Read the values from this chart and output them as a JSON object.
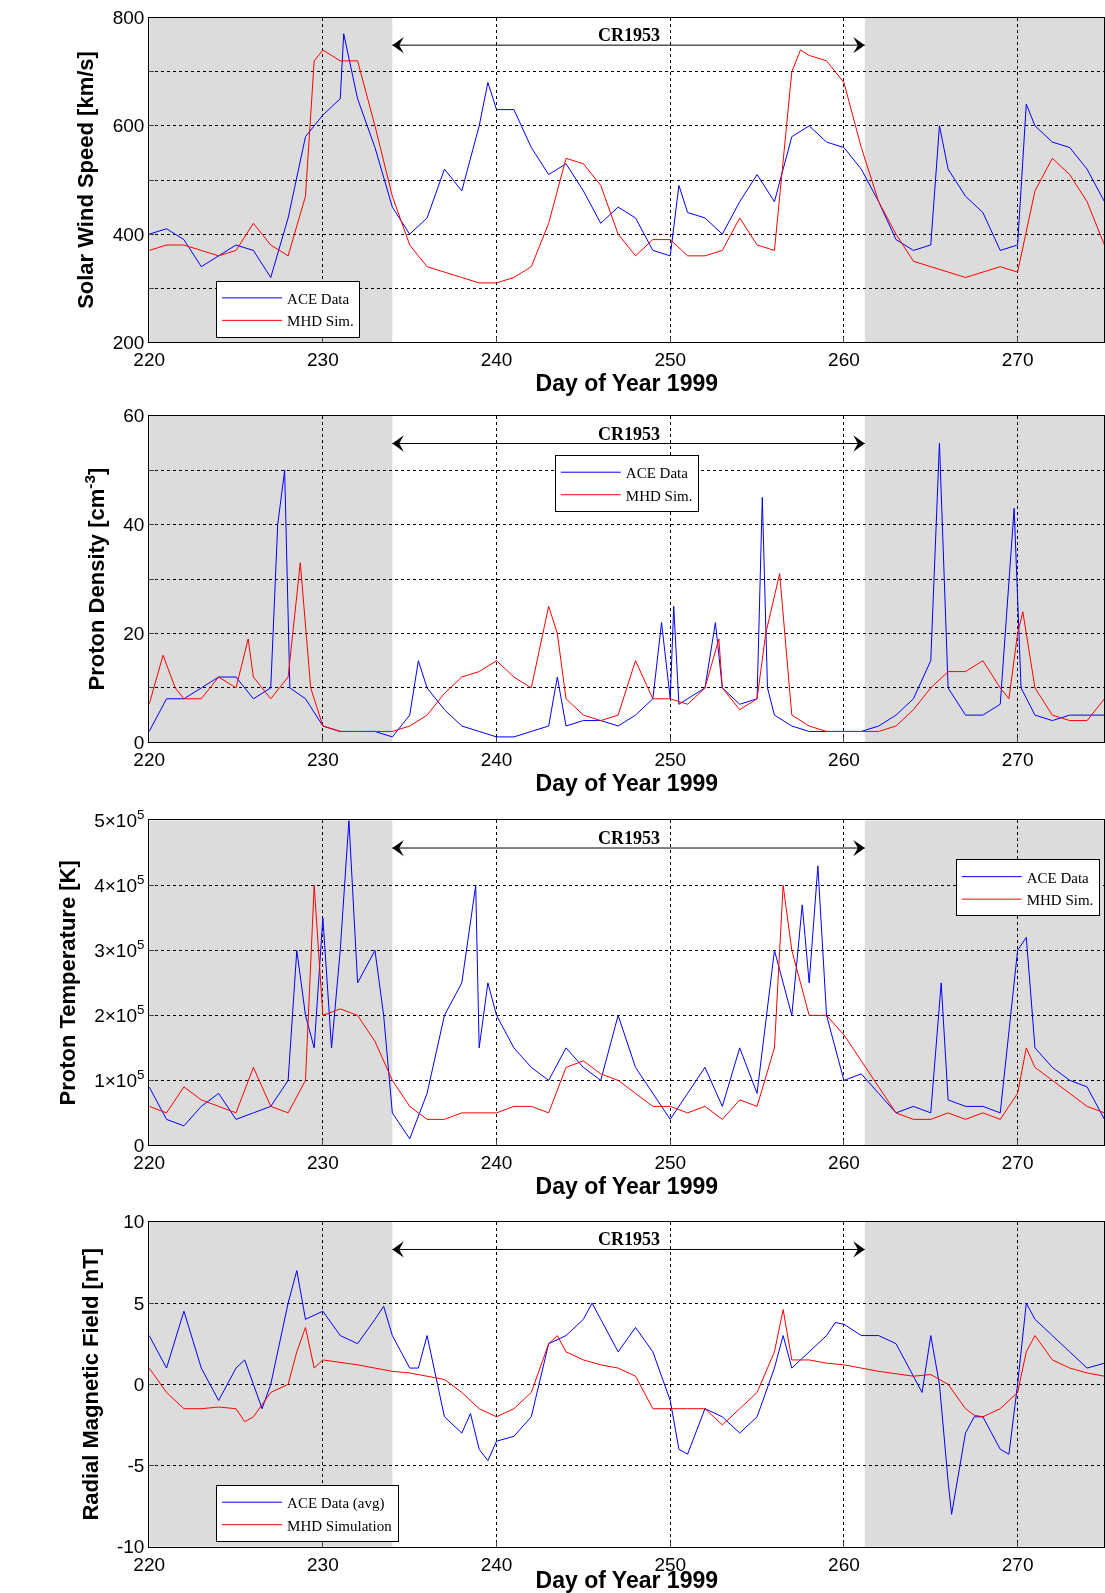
{
  "chart_data": [
    {
      "type": "line",
      "ylabel": "Solar Wind Speed [km/s]",
      "xlabel": "Day of Year 1999",
      "annotations": [
        "CR1953"
      ],
      "xlim": [
        220,
        275
      ],
      "xticks": [
        220,
        230,
        240,
        250,
        260,
        270
      ],
      "ylim": [
        200,
        800
      ],
      "yticks": [
        200,
        {
          "value": 300,
          "label": null
        },
        400,
        {
          "value": 500,
          "label": null
        },
        600,
        {
          "value": 700,
          "label": null
        },
        800
      ],
      "grid": true,
      "line_style": "solid",
      "legend": "bottom left",
      "bands": [
        {
          "axis": "x",
          "from": 220,
          "to": 234,
          "label": null,
          "color": "#dcdcdc"
        },
        {
          "axis": "x",
          "from": 261.2,
          "to": 275,
          "label": null,
          "color": "#dcdcdc"
        }
      ],
      "series": [
        {
          "name": "ACE Data",
          "color": "#0000ff",
          "x": [
            220,
            221,
            222,
            223,
            224,
            225,
            226,
            227,
            228,
            229,
            230,
            231,
            231.2,
            232,
            233,
            234,
            235,
            236,
            237,
            238,
            239,
            239.5,
            240,
            241,
            242,
            243,
            244,
            245,
            246,
            247,
            248,
            249,
            250,
            250.5,
            251,
            252,
            253,
            254,
            255,
            256,
            257,
            258,
            259,
            260,
            261,
            262,
            263,
            264,
            265,
            265.5,
            266,
            267,
            268,
            269,
            270,
            270.5,
            271,
            272,
            273,
            274,
            275
          ],
          "values": [
            400,
            410,
            390,
            340,
            360,
            380,
            370,
            320,
            430,
            580,
            620,
            650,
            770,
            650,
            560,
            450,
            400,
            430,
            520,
            480,
            600,
            680,
            630,
            630,
            560,
            510,
            530,
            480,
            420,
            450,
            430,
            370,
            360,
            490,
            440,
            430,
            400,
            460,
            510,
            460,
            580,
            600,
            570,
            560,
            520,
            460,
            390,
            370,
            380,
            600,
            520,
            470,
            440,
            370,
            380,
            640,
            600,
            570,
            560,
            520,
            460
          ]
        },
        {
          "name": "MHD Sim.",
          "color": "#ff0000",
          "x": [
            220,
            221,
            222,
            223,
            224,
            225,
            226,
            227,
            228,
            229,
            229.5,
            230,
            231,
            232,
            233,
            234,
            235,
            236,
            237,
            238,
            239,
            240,
            241,
            242,
            243,
            244,
            245,
            246,
            247,
            248,
            249,
            250,
            251,
            252,
            253,
            254,
            255,
            256,
            257,
            257.5,
            258,
            259,
            260,
            261,
            262,
            263,
            264,
            265,
            266,
            267,
            268,
            269,
            270,
            271,
            272,
            273,
            274,
            275
          ],
          "values": [
            370,
            380,
            380,
            370,
            360,
            370,
            420,
            380,
            360,
            470,
            720,
            740,
            720,
            720,
            600,
            470,
            380,
            340,
            330,
            320,
            310,
            310,
            320,
            340,
            420,
            540,
            530,
            490,
            400,
            360,
            390,
            390,
            360,
            360,
            370,
            430,
            380,
            370,
            700,
            740,
            730,
            720,
            680,
            560,
            460,
            400,
            350,
            340,
            330,
            320,
            330,
            340,
            330,
            480,
            540,
            510,
            460,
            380
          ]
        }
      ]
    },
    {
      "type": "line",
      "ylabel": "Proton Density [cm$^{-3}$]",
      "xlabel": "Day of Year 1999",
      "annotations": [
        "CR1953"
      ],
      "xlim": [
        220,
        275
      ],
      "xticks": [
        220,
        230,
        240,
        250,
        260,
        270
      ],
      "ylim": [
        0,
        60
      ],
      "yticks": [
        0,
        {
          "value": 10,
          "label": null
        },
        20,
        {
          "value": 30,
          "label": null
        },
        40,
        {
          "value": 50,
          "label": null
        },
        60
      ],
      "grid": true,
      "line_style": "solid",
      "legend": "top",
      "bands": [
        {
          "axis": "x",
          "from": 220,
          "to": 234,
          "label": null,
          "color": "#dcdcdc"
        },
        {
          "axis": "x",
          "from": 261.2,
          "to": 275,
          "label": null,
          "color": "#dcdcdc"
        }
      ],
      "series": [
        {
          "name": "ACE Data",
          "color": "#0000ff",
          "x": [
            220,
            221,
            222,
            223,
            224,
            225,
            226,
            227,
            227.4,
            227.8,
            228.1,
            229,
            230,
            231,
            232,
            233,
            234,
            235,
            235.5,
            236,
            237,
            238,
            239,
            240,
            241,
            242,
            243,
            243.5,
            244,
            245,
            246,
            247,
            248,
            249,
            249.5,
            250,
            250.2,
            250.5,
            251,
            252,
            252.6,
            253,
            254,
            255,
            255.3,
            255.6,
            256,
            257,
            258,
            259,
            260,
            261,
            262,
            263,
            264,
            265,
            265.5,
            266,
            267,
            268,
            269,
            269.8,
            270.2,
            271,
            272,
            273,
            274,
            275
          ],
          "values": [
            2,
            8,
            8,
            10,
            12,
            12,
            8,
            10,
            40,
            50,
            10,
            8,
            3,
            2,
            2,
            2,
            1,
            5,
            15,
            10,
            6,
            3,
            2,
            1,
            1,
            2,
            3,
            12,
            3,
            4,
            4,
            3,
            5,
            8,
            22,
            8,
            25,
            7,
            8,
            10,
            22,
            10,
            7,
            8,
            45,
            10,
            5,
            3,
            2,
            2,
            2,
            2,
            3,
            5,
            8,
            15,
            55,
            10,
            5,
            5,
            7,
            43,
            10,
            5,
            4,
            5,
            5,
            5
          ]
        },
        {
          "name": "MHD Sim.",
          "color": "#ff0000",
          "x": [
            220,
            220.8,
            221.5,
            222,
            223,
            224,
            225,
            225.7,
            226,
            227,
            227.5,
            228,
            228.7,
            229.3,
            230,
            231,
            232,
            233,
            234,
            235,
            236,
            237,
            238,
            239,
            240,
            241,
            242,
            243,
            243.5,
            244,
            245,
            246,
            247,
            248,
            249,
            250,
            251,
            252,
            252.8,
            253,
            254,
            255,
            255.5,
            256.3,
            257,
            258,
            259,
            260,
            261,
            262,
            263,
            264,
            265,
            266,
            267,
            268,
            269,
            269.5,
            270,
            270.3,
            271,
            272,
            273,
            274,
            275
          ],
          "values": [
            7,
            16,
            10,
            8,
            8,
            12,
            10,
            19,
            12,
            8,
            10,
            12,
            33,
            10,
            3,
            2,
            2,
            2,
            2,
            3,
            5,
            9,
            12,
            13,
            15,
            12,
            10,
            25,
            20,
            8,
            5,
            4,
            5,
            15,
            8,
            8,
            7,
            10,
            19,
            10,
            6,
            8,
            20,
            31,
            5,
            3,
            2,
            2,
            2,
            2,
            3,
            6,
            10,
            13,
            13,
            15,
            10,
            8,
            20,
            24,
            10,
            5,
            4,
            4,
            8
          ]
        }
      ]
    },
    {
      "type": "line",
      "ylabel": "Proton Temperature [K]",
      "xlabel": "Day of Year 1999",
      "annotations": [
        "CR1953"
      ],
      "xlim": [
        220,
        275
      ],
      "xticks": [
        220,
        230,
        240,
        250,
        260,
        270
      ],
      "ylim": [
        0,
        500000
      ],
      "yticks": [
        0,
        {
          "value": 100000,
          "label": "1×10$^{5}$"
        },
        {
          "value": 200000,
          "label": "2×10$^{5}$"
        },
        {
          "value": 300000,
          "label": "3×10$^{5}$"
        },
        {
          "value": 400000,
          "label": "4×10$^{5}$"
        },
        {
          "value": 500000,
          "label": "5×10$^{5}$"
        }
      ],
      "grid": true,
      "line_style": "solid",
      "legend": "top right",
      "bands": [
        {
          "axis": "x",
          "from": 220,
          "to": 234,
          "label": null,
          "color": "#dcdcdc"
        },
        {
          "axis": "x",
          "from": 261.2,
          "to": 275,
          "label": null,
          "color": "#dcdcdc"
        }
      ],
      "series": [
        {
          "name": "ACE Data",
          "color": "#0000ff",
          "x": [
            220,
            221,
            222,
            223,
            224,
            225,
            226,
            227,
            228,
            228.5,
            229,
            229.5,
            230,
            230.5,
            231,
            231.5,
            232,
            233,
            233.5,
            234,
            235,
            236,
            237,
            238,
            238.8,
            239,
            239.5,
            240,
            241,
            242,
            243,
            244,
            245,
            246,
            247,
            248,
            249,
            250,
            251,
            252,
            253,
            254,
            255,
            256,
            256.5,
            257,
            257.6,
            258,
            258.5,
            259,
            260,
            261,
            262,
            263,
            264,
            265,
            265.6,
            266,
            267,
            268,
            269,
            270,
            270.5,
            271,
            272,
            273,
            274,
            275
          ],
          "values": [
            90000,
            40000,
            30000,
            60000,
            80000,
            40000,
            50000,
            60000,
            100000,
            300000,
            200000,
            150000,
            350000,
            150000,
            300000,
            500000,
            250000,
            300000,
            200000,
            50000,
            10000,
            80000,
            200000,
            250000,
            400000,
            150000,
            250000,
            200000,
            150000,
            120000,
            100000,
            150000,
            120000,
            100000,
            200000,
            120000,
            80000,
            40000,
            80000,
            120000,
            60000,
            150000,
            80000,
            300000,
            250000,
            200000,
            370000,
            250000,
            430000,
            200000,
            100000,
            110000,
            80000,
            50000,
            60000,
            50000,
            250000,
            70000,
            60000,
            60000,
            50000,
            300000,
            320000,
            150000,
            120000,
            100000,
            90000,
            40000
          ]
        },
        {
          "name": "MHD Sim.",
          "color": "#ff0000",
          "x": [
            220,
            221,
            222,
            223,
            224,
            225,
            226,
            227,
            228,
            229,
            229.5,
            230,
            231,
            232,
            233,
            234,
            235,
            236,
            237,
            238,
            239,
            240,
            241,
            242,
            243,
            244,
            245,
            246,
            247,
            248,
            249,
            250,
            251,
            252,
            253,
            254,
            255,
            256,
            256.5,
            257,
            258,
            259,
            260,
            261,
            262,
            263,
            264,
            265,
            266,
            267,
            268,
            269,
            270,
            270.5,
            271,
            272,
            273,
            274,
            275
          ],
          "values": [
            60000,
            50000,
            90000,
            70000,
            60000,
            50000,
            120000,
            60000,
            50000,
            100000,
            400000,
            200000,
            210000,
            200000,
            160000,
            100000,
            60000,
            40000,
            40000,
            50000,
            50000,
            50000,
            60000,
            60000,
            50000,
            120000,
            130000,
            110000,
            100000,
            80000,
            60000,
            60000,
            50000,
            60000,
            40000,
            70000,
            60000,
            150000,
            400000,
            300000,
            200000,
            200000,
            170000,
            130000,
            90000,
            50000,
            40000,
            40000,
            50000,
            40000,
            50000,
            40000,
            80000,
            150000,
            120000,
            100000,
            80000,
            60000,
            50000
          ]
        }
      ]
    },
    {
      "type": "line",
      "ylabel": "Radial Magnetic Field [nT]",
      "xlabel": "Day of Year 1999",
      "annotations": [
        "CR1953"
      ],
      "xlim": [
        220,
        275
      ],
      "xticks": [
        220,
        230,
        240,
        250,
        260,
        270
      ],
      "ylim": [
        -10,
        10
      ],
      "yticks": [
        -10,
        -5,
        0,
        5,
        10
      ],
      "grid": true,
      "line_style": "solid",
      "legend": "bottom left",
      "bands": [
        {
          "axis": "x",
          "from": 220,
          "to": 234,
          "label": null,
          "color": "#dcdcdc"
        },
        {
          "axis": "x",
          "from": 261.2,
          "to": 275,
          "label": null,
          "color": "#dcdcdc"
        }
      ],
      "series": [
        {
          "name": "ACE Data (avg)",
          "color": "#0000ff",
          "x": [
            220,
            221,
            222,
            223,
            224,
            225,
            225.5,
            226,
            226.5,
            227,
            228,
            228.5,
            229,
            230,
            231,
            232,
            233,
            233.5,
            234,
            235,
            235.5,
            236,
            237,
            238,
            238.5,
            239,
            239.5,
            240,
            241,
            242,
            243,
            244,
            245,
            245.5,
            246,
            247,
            248,
            249,
            250,
            250.5,
            251,
            252,
            253,
            254,
            255,
            256,
            256.5,
            257,
            258,
            259,
            259.5,
            260,
            261,
            262,
            263,
            264,
            264.5,
            265,
            265.5,
            266,
            266.2,
            267,
            267.5,
            268,
            269,
            269.5,
            270,
            270.5,
            271,
            272,
            273,
            274,
            275
          ],
          "values": [
            3,
            1,
            4.5,
            1,
            -1,
            1,
            1.5,
            0,
            -1.5,
            0,
            5,
            7,
            4,
            4.5,
            3,
            2.5,
            4,
            4.8,
            3,
            1,
            1,
            3,
            -2,
            -3,
            -1.8,
            -4,
            -4.7,
            -3.5,
            -3.2,
            -2,
            2.5,
            3,
            4,
            5,
            4,
            2,
            3.5,
            2,
            -1,
            -4,
            -4.3,
            -1.5,
            -2,
            -3,
            -2,
            1,
            3,
            1,
            2,
            3,
            3.8,
            3.7,
            3,
            3,
            2.5,
            0.5,
            -0.5,
            3,
            0,
            -6,
            -8,
            -3,
            -2,
            -2,
            -4,
            -4.3,
            0,
            5,
            4,
            3,
            2,
            1,
            1.3
          ]
        },
        {
          "name": "MHD Simulation",
          "color": "#ff0000",
          "x": [
            220,
            221,
            222,
            223,
            224,
            225,
            225.5,
            226,
            227,
            228,
            228.5,
            229,
            229.5,
            230,
            232,
            234,
            235,
            236,
            237,
            238,
            239,
            240,
            241,
            242,
            242.5,
            243,
            243.5,
            244,
            245,
            246,
            247,
            248,
            249,
            250,
            251,
            252,
            253,
            254,
            255,
            256,
            256.5,
            257,
            258,
            259,
            260,
            262,
            264,
            265,
            266,
            267,
            267.5,
            268,
            269,
            270,
            270.5,
            271,
            272,
            273,
            274,
            275
          ],
          "values": [
            1,
            -0.5,
            -1.5,
            -1.5,
            -1.4,
            -1.5,
            -2.3,
            -2,
            -0.5,
            0,
            2,
            3.5,
            1,
            1.5,
            1.2,
            0.8,
            0.7,
            0.5,
            0.3,
            -0.5,
            -1.5,
            -2,
            -1.5,
            -0.5,
            1,
            2.5,
            3,
            2,
            1.5,
            1.2,
            1,
            0.5,
            -1.5,
            -1.5,
            -1.5,
            -1.5,
            -2.5,
            -1.5,
            -0.5,
            2,
            4.6,
            1.5,
            1.5,
            1.3,
            1.2,
            0.8,
            0.5,
            0.6,
            0,
            -1.5,
            -1.9,
            -2,
            -1.5,
            -0.5,
            2,
            3,
            1.5,
            1,
            0.7,
            0.5
          ]
        }
      ]
    }
  ]
}
